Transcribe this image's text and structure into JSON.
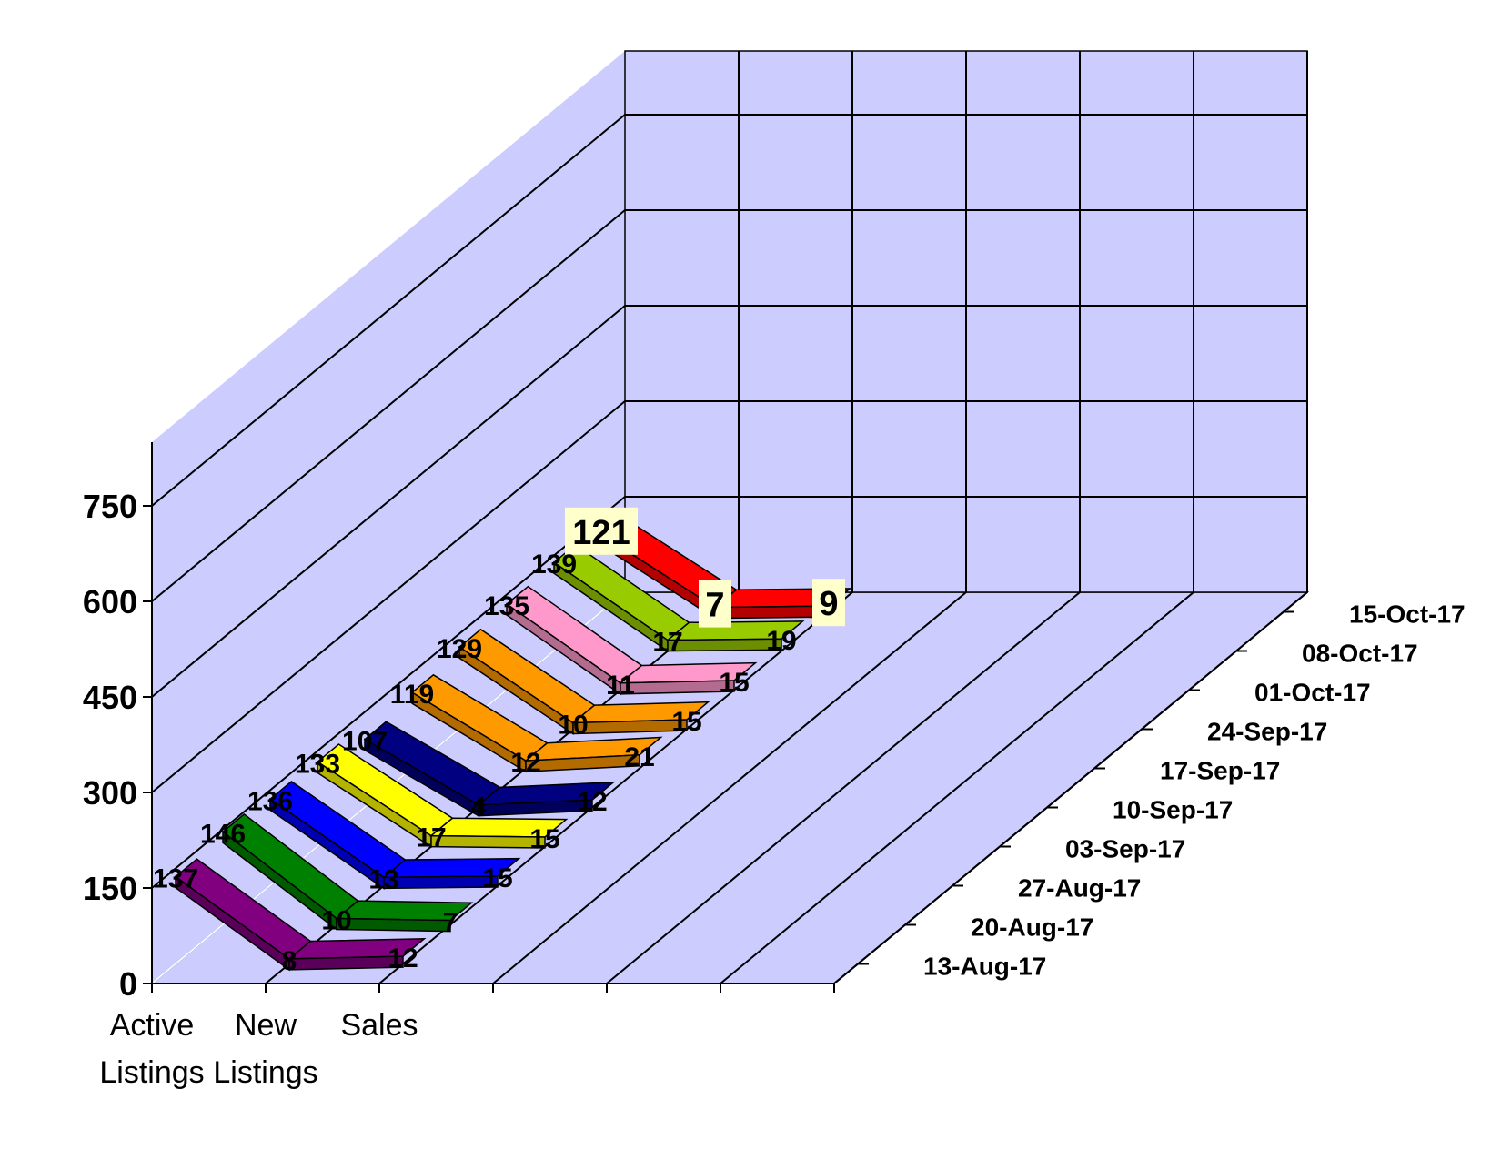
{
  "chart_data": {
    "type": "line",
    "title": "",
    "style": "3d-ribbon",
    "x_axis": {
      "categories": [
        "Active Listings",
        "New Listings",
        "Sales"
      ],
      "label_lines": [
        [
          "Active",
          "Listings"
        ],
        [
          "New",
          "Listings"
        ],
        [
          "Sales"
        ]
      ]
    },
    "y_axis": {
      "min": 0,
      "max": 750,
      "ticks": [
        0,
        150,
        300,
        450,
        600,
        750
      ]
    },
    "series": [
      {
        "name": "13-Aug-17",
        "color": "#800080",
        "values": [
          137,
          8,
          12
        ]
      },
      {
        "name": "20-Aug-17",
        "color": "#008000",
        "values": [
          146,
          10,
          7
        ]
      },
      {
        "name": "27-Aug-17",
        "color": "#0000ff",
        "values": [
          136,
          13,
          15
        ]
      },
      {
        "name": "03-Sep-17",
        "color": "#ffff00",
        "values": [
          133,
          17,
          15
        ]
      },
      {
        "name": "10-Sep-17",
        "color": "#000080",
        "values": [
          107,
          4,
          12
        ]
      },
      {
        "name": "17-Sep-17",
        "color": "#ff9900",
        "values": [
          119,
          12,
          21
        ]
      },
      {
        "name": "24-Sep-17",
        "color": "#ff9900",
        "values": [
          129,
          10,
          15
        ]
      },
      {
        "name": "01-Oct-17",
        "color": "#ff99cc",
        "values": [
          135,
          11,
          15
        ]
      },
      {
        "name": "08-Oct-17",
        "color": "#99cc00",
        "values": [
          139,
          17,
          19
        ]
      },
      {
        "name": "15-Oct-17",
        "color": "#ff0000",
        "values": [
          121,
          7,
          9
        ]
      }
    ],
    "grid": true,
    "colors": {
      "walls": "#ccccff",
      "grid_lines": "#000000"
    }
  }
}
